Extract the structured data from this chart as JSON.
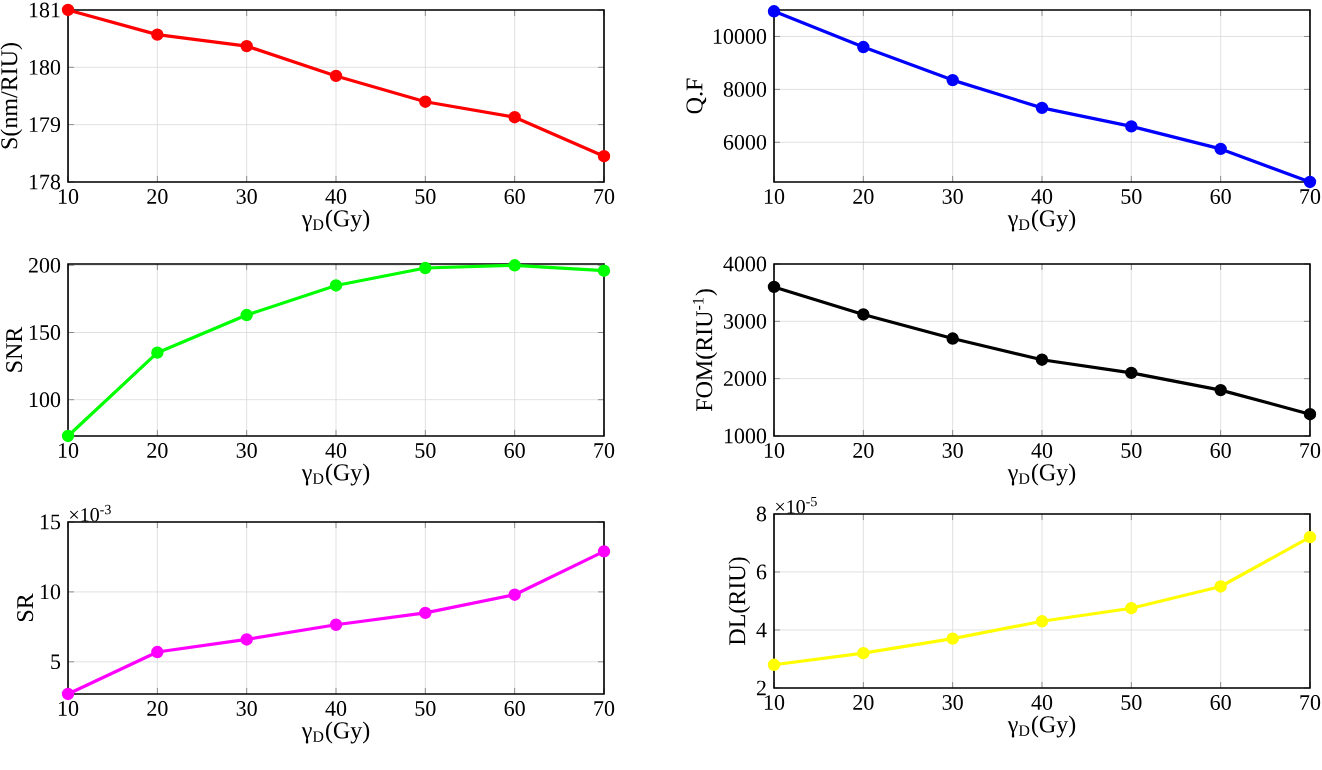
{
  "chart_data": [
    {
      "type": "line",
      "xlabel": "γ$_{D}$(Gy)",
      "ylabel": "S(nm/RIU)",
      "x": [
        10,
        20,
        30,
        40,
        50,
        60,
        70
      ],
      "xlim": [
        10,
        70
      ],
      "xticks": [
        10,
        20,
        30,
        40,
        50,
        60,
        70
      ],
      "ylim": [
        178,
        181
      ],
      "yticks": [
        178,
        179,
        180,
        181
      ],
      "grid": true,
      "marker": "circle",
      "series": [
        {
          "color": "#ff0000",
          "values": [
            181,
            180.57,
            180.37,
            179.85,
            179.4,
            179.13,
            178.45
          ]
        }
      ]
    },
    {
      "type": "line",
      "xlabel": "γ$_{D}$(Gy)",
      "ylabel": "Q.F",
      "x": [
        10,
        20,
        30,
        40,
        50,
        60,
        70
      ],
      "xlim": [
        10,
        70
      ],
      "xticks": [
        10,
        20,
        30,
        40,
        50,
        60,
        70
      ],
      "ylim": [
        4500,
        11000
      ],
      "yticks": [
        6000,
        8000,
        10000
      ],
      "grid": true,
      "marker": "circle",
      "series": [
        {
          "color": "#0000ff",
          "values": [
            10950,
            9600,
            8350,
            7300,
            6600,
            5750,
            4500
          ]
        }
      ]
    },
    {
      "type": "line",
      "xlabel": "γ$_{D}$(Gy)",
      "ylabel": "SNR",
      "x": [
        10,
        20,
        30,
        40,
        50,
        60,
        70
      ],
      "xlim": [
        10,
        70
      ],
      "xticks": [
        10,
        20,
        30,
        40,
        50,
        60,
        70
      ],
      "ylim": [
        73,
        201
      ],
      "yticks": [
        100,
        150,
        200
      ],
      "grid": true,
      "marker": "circle",
      "series": [
        {
          "color": "#00ff00",
          "values": [
            73,
            135,
            163,
            185,
            198,
            200,
            196
          ]
        }
      ]
    },
    {
      "type": "line",
      "xlabel": "γ$_{D}$(Gy)",
      "ylabel": "FOM(RIU$^{-1}$)",
      "x": [
        10,
        20,
        30,
        40,
        50,
        60,
        70
      ],
      "xlim": [
        10,
        70
      ],
      "xticks": [
        10,
        20,
        30,
        40,
        50,
        60,
        70
      ],
      "ylim": [
        1000,
        4000
      ],
      "yticks": [
        1000,
        2000,
        3000,
        4000
      ],
      "grid": true,
      "marker": "circle",
      "series": [
        {
          "color": "#000000",
          "values": [
            3600,
            3120,
            2700,
            2330,
            2100,
            1800,
            1380
          ]
        }
      ]
    },
    {
      "type": "line",
      "xlabel": "γ$_{D}$(Gy)",
      "ylabel": "SR",
      "annotations": [
        "×10$^{-3}$"
      ],
      "x": [
        10,
        20,
        30,
        40,
        50,
        60,
        70
      ],
      "xlim": [
        10,
        70
      ],
      "xticks": [
        10,
        20,
        30,
        40,
        50,
        60,
        70
      ],
      "ylim": [
        2.7,
        15
      ],
      "yticks": [
        5,
        10,
        15
      ],
      "grid": true,
      "marker": "circle",
      "series": [
        {
          "color": "#ff00ff",
          "values": [
            2.7,
            5.7,
            6.6,
            7.65,
            8.5,
            9.8,
            12.9
          ]
        }
      ]
    },
    {
      "type": "line",
      "xlabel": "γ$_{D}$(Gy)",
      "ylabel": "DL(RIU)",
      "annotations": [
        "×10$^{-5}$"
      ],
      "x": [
        10,
        20,
        30,
        40,
        50,
        60,
        70
      ],
      "xlim": [
        10,
        70
      ],
      "xticks": [
        10,
        20,
        30,
        40,
        50,
        60,
        70
      ],
      "ylim": [
        2,
        8
      ],
      "yticks": [
        2,
        4,
        6,
        8
      ],
      "grid": true,
      "marker": "circle",
      "series": [
        {
          "color": "#ffff00",
          "values": [
            2.8,
            3.2,
            3.7,
            4.3,
            4.75,
            5.5,
            7.2
          ]
        }
      ]
    }
  ]
}
